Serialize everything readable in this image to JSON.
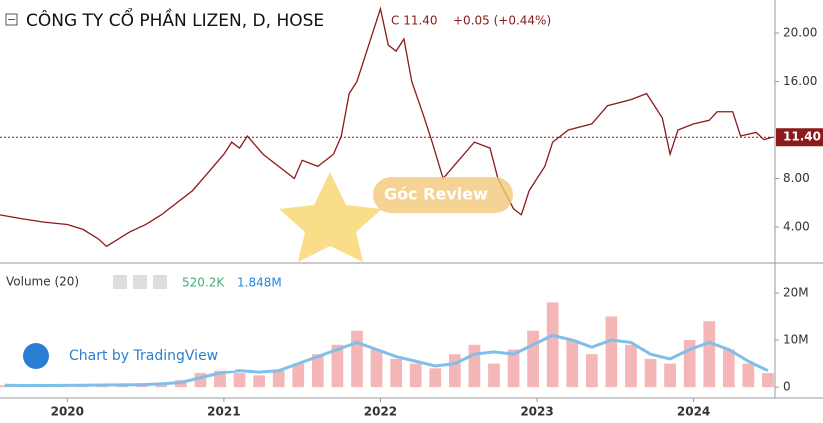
{
  "header": {
    "title": "CÔNG TY CỔ PHẦN LIZEN, D, HOSE",
    "close": "C 11.40",
    "change": "+0.05 (+0.44%)",
    "volume_label": "Volume (20)",
    "volume_value": "520.2K",
    "volume_ma_value": "1.848M",
    "watermark": "Chart by TradingView",
    "overlay_text": "Góc Review"
  },
  "chart_data": [
    {
      "type": "line",
      "color": "#8b1a1a",
      "x": [
        2019.57,
        2019.7,
        2019.85,
        2020.0,
        2020.1,
        2020.2,
        2020.25,
        2020.3,
        2020.4,
        2020.5,
        2020.6,
        2020.7,
        2020.8,
        2020.9,
        2021.0,
        2021.05,
        2021.1,
        2021.15,
        2021.25,
        2021.35,
        2021.45,
        2021.5,
        2021.6,
        2021.7,
        2021.75,
        2021.8,
        2021.85,
        2021.9,
        2021.95,
        2022.0,
        2022.05,
        2022.1,
        2022.15,
        2022.2,
        2022.28,
        2022.33,
        2022.4,
        2022.5,
        2022.6,
        2022.7,
        2022.75,
        2022.85,
        2022.9,
        2022.95,
        2023.05,
        2023.1,
        2023.2,
        2023.35,
        2023.45,
        2023.6,
        2023.7,
        2023.8,
        2023.85,
        2023.9,
        2024.0,
        2024.1,
        2024.15,
        2024.25,
        2024.3,
        2024.4,
        2024.45,
        2024.5
      ],
      "values": [
        5.0,
        4.7,
        4.4,
        4.2,
        3.8,
        3.0,
        2.4,
        2.8,
        3.6,
        4.2,
        5.0,
        6.0,
        7.0,
        8.5,
        10.0,
        11.0,
        10.5,
        11.5,
        10.0,
        9.0,
        8.0,
        9.5,
        9.0,
        10.0,
        11.5,
        15.0,
        16.0,
        18.0,
        20.0,
        22.0,
        19.0,
        18.5,
        19.5,
        16.0,
        13.0,
        11.0,
        8.0,
        9.5,
        11.0,
        10.5,
        8.0,
        5.5,
        5.0,
        7.0,
        9.0,
        11.0,
        12.0,
        12.5,
        14.0,
        14.5,
        15.0,
        13.0,
        10.0,
        12.0,
        12.5,
        12.8,
        13.5,
        13.5,
        11.5,
        11.8,
        11.2,
        11.4
      ],
      "xlim": [
        2019.57,
        2024.52
      ],
      "ylim": [
        1.11,
        22.72
      ],
      "yticks": [
        {
          "value": 4,
          "label": "4.00"
        },
        {
          "value": 8,
          "label": "8.00"
        },
        {
          "value": 16,
          "label": "16.00"
        },
        {
          "value": 20,
          "label": "20.00"
        }
      ],
      "last_price": {
        "value": 11.4,
        "label": "11.40"
      }
    },
    {
      "type": "bar",
      "color": "#f4b6b6",
      "ma_color": "#7fbfea",
      "x": [
        2019.6,
        2019.725,
        2019.85,
        2019.975,
        2020.1,
        2020.225,
        2020.35,
        2020.475,
        2020.6,
        2020.725,
        2020.85,
        2020.975,
        2021.1,
        2021.225,
        2021.35,
        2021.475,
        2021.6,
        2021.725,
        2021.85,
        2021.975,
        2022.1,
        2022.225,
        2022.35,
        2022.475,
        2022.6,
        2022.725,
        2022.85,
        2022.975,
        2023.1,
        2023.225,
        2023.35,
        2023.475,
        2023.6,
        2023.725,
        2023.85,
        2023.975,
        2024.1,
        2024.225,
        2024.35,
        2024.475
      ],
      "values": [
        400000,
        300000,
        300000,
        400000,
        500000,
        400000,
        500000,
        600000,
        800000,
        1500000,
        3000000,
        4000000,
        3000000,
        2500000,
        3500000,
        5000000,
        7000000,
        9000000,
        12000000,
        8000000,
        6000000,
        5000000,
        4000000,
        7000000,
        9000000,
        5000000,
        8000000,
        12000000,
        18000000,
        10000000,
        7000000,
        15000000,
        9000000,
        6000000,
        5000000,
        10000000,
        14000000,
        8000000,
        5000000,
        3000000
      ],
      "ma": [
        400000,
        350000,
        350000,
        380000,
        420000,
        450000,
        480000,
        550000,
        700000,
        1000000,
        2000000,
        3000000,
        3500000,
        3200000,
        3500000,
        5000000,
        6500000,
        8000000,
        9500000,
        8000000,
        6500000,
        5500000,
        4500000,
        5000000,
        7000000,
        7500000,
        7000000,
        9000000,
        11000000,
        10000000,
        8500000,
        10000000,
        9500000,
        7000000,
        6000000,
        8000000,
        9500000,
        8000000,
        5500000,
        3500000
      ],
      "xlim": [
        2019.57,
        2024.52
      ],
      "ylim": [
        -2300000,
        25300000
      ],
      "yticks": [
        {
          "value": 0,
          "label": "0"
        },
        {
          "value": 10000000,
          "label": "10M"
        },
        {
          "value": 20000000,
          "label": "20M"
        }
      ],
      "xticks": [
        2020,
        2021,
        2022,
        2023,
        2024
      ]
    }
  ]
}
